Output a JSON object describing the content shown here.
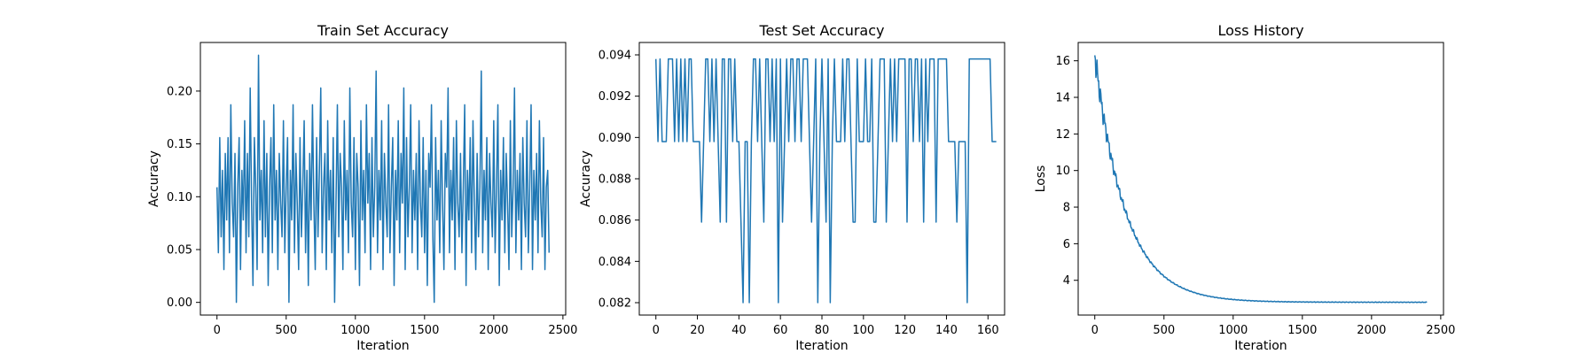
{
  "chart_data": [
    {
      "type": "line",
      "title": "Train Set Accuracy",
      "xlabel": "Iteration",
      "ylabel": "Accuracy",
      "xlim": [
        -120,
        2520
      ],
      "ylim": [
        -0.012,
        0.246
      ],
      "xticks": [
        0,
        500,
        1000,
        1500,
        2000,
        2500
      ],
      "yticks": [
        0.0,
        0.05,
        0.1,
        0.15,
        0.2
      ],
      "ytick_labels": [
        "0.00",
        "0.05",
        "0.10",
        "0.15",
        "0.20"
      ],
      "grid": false,
      "color": "#1f77b4",
      "series": [
        {
          "x_start": 0,
          "x_step": 10,
          "values": [
            0.109,
            0.047,
            0.156,
            0.062,
            0.125,
            0.031,
            0.141,
            0.078,
            0.156,
            0.047,
            0.187,
            0.094,
            0.062,
            0.141,
            0.0,
            0.109,
            0.156,
            0.031,
            0.125,
            0.078,
            0.172,
            0.047,
            0.141,
            0.062,
            0.203,
            0.094,
            0.016,
            0.156,
            0.109,
            0.031,
            0.234,
            0.078,
            0.125,
            0.047,
            0.172,
            0.062,
            0.141,
            0.016,
            0.109,
            0.156,
            0.047,
            0.187,
            0.078,
            0.125,
            0.031,
            0.141,
            0.094,
            0.062,
            0.172,
            0.047,
            0.109,
            0.156,
            0.0,
            0.125,
            0.078,
            0.187,
            0.047,
            0.141,
            0.094,
            0.031,
            0.156,
            0.062,
            0.109,
            0.172,
            0.047,
            0.125,
            0.016,
            0.141,
            0.078,
            0.187,
            0.094,
            0.031,
            0.156,
            0.062,
            0.125,
            0.203,
            0.047,
            0.109,
            0.141,
            0.031,
            0.172,
            0.078,
            0.125,
            0.047,
            0.156,
            0.0,
            0.094,
            0.187,
            0.062,
            0.141,
            0.109,
            0.031,
            0.172,
            0.078,
            0.125,
            0.047,
            0.203,
            0.094,
            0.062,
            0.156,
            0.031,
            0.141,
            0.109,
            0.016,
            0.172,
            0.078,
            0.125,
            0.047,
            0.187,
            0.094,
            0.141,
            0.031,
            0.156,
            0.062,
            0.109,
            0.219,
            0.047,
            0.125,
            0.078,
            0.172,
            0.031,
            0.141,
            0.094,
            0.062,
            0.187,
            0.047,
            0.109,
            0.156,
            0.016,
            0.125,
            0.078,
            0.172,
            0.047,
            0.141,
            0.094,
            0.203,
            0.031,
            0.156,
            0.062,
            0.109,
            0.187,
            0.047,
            0.125,
            0.078,
            0.141,
            0.031,
            0.172,
            0.094,
            0.062,
            0.156,
            0.047,
            0.125,
            0.016,
            0.141,
            0.109,
            0.187,
            0.062,
            0.0,
            0.156,
            0.078,
            0.125,
            0.047,
            0.172,
            0.094,
            0.031,
            0.141,
            0.109,
            0.203,
            0.047,
            0.125,
            0.078,
            0.156,
            0.031,
            0.172,
            0.094,
            0.062,
            0.141,
            0.047,
            0.109,
            0.187,
            0.016,
            0.125,
            0.078,
            0.156,
            0.047,
            0.172,
            0.094,
            0.031,
            0.141,
            0.062,
            0.109,
            0.219,
            0.047,
            0.125,
            0.078,
            0.156,
            0.031,
            0.141,
            0.094,
            0.062,
            0.172,
            0.047,
            0.109,
            0.187,
            0.016,
            0.125,
            0.078,
            0.156,
            0.047,
            0.141,
            0.094,
            0.031,
            0.172,
            0.062,
            0.109,
            0.203,
            0.047,
            0.125,
            0.078,
            0.141,
            0.031,
            0.156,
            0.094,
            0.062,
            0.172,
            0.047,
            0.109,
            0.187,
            0.031,
            0.125,
            0.078,
            0.141,
            0.047,
            0.172,
            0.094,
            0.062,
            0.156,
            0.031,
            0.109,
            0.125,
            0.047
          ]
        }
      ]
    },
    {
      "type": "line",
      "title": "Test Set Accuracy",
      "xlabel": "Iteration",
      "ylabel": "Accuracy",
      "xlim": [
        -8,
        168
      ],
      "ylim": [
        0.0814,
        0.0946
      ],
      "xticks": [
        0,
        20,
        40,
        60,
        80,
        100,
        120,
        140,
        160
      ],
      "yticks": [
        0.082,
        0.084,
        0.086,
        0.088,
        0.09,
        0.092,
        0.094
      ],
      "ytick_labels": [
        "0.082",
        "0.084",
        "0.086",
        "0.088",
        "0.090",
        "0.092",
        "0.094"
      ],
      "grid": false,
      "color": "#1f77b4",
      "series": [
        {
          "x_start": 0,
          "x_step": 1,
          "values": [
            0.0938,
            0.0898,
            0.0938,
            0.0898,
            0.0898,
            0.0898,
            0.0938,
            0.0938,
            0.0938,
            0.0898,
            0.0938,
            0.0898,
            0.0938,
            0.0898,
            0.0938,
            0.0898,
            0.0938,
            0.0938,
            0.0898,
            0.0898,
            0.0898,
            0.0898,
            0.0859,
            0.0898,
            0.0938,
            0.0938,
            0.0898,
            0.0938,
            0.0898,
            0.0938,
            0.0898,
            0.0859,
            0.0938,
            0.0938,
            0.0859,
            0.0938,
            0.0938,
            0.0898,
            0.0938,
            0.0898,
            0.0898,
            0.0859,
            0.082,
            0.0898,
            0.0898,
            0.082,
            0.0898,
            0.0938,
            0.0938,
            0.0898,
            0.0938,
            0.0898,
            0.0859,
            0.0938,
            0.0938,
            0.0898,
            0.0938,
            0.0898,
            0.0938,
            0.082,
            0.0938,
            0.0859,
            0.0898,
            0.0938,
            0.0898,
            0.0938,
            0.0938,
            0.0898,
            0.0938,
            0.0938,
            0.0898,
            0.0938,
            0.0938,
            0.0938,
            0.0898,
            0.0859,
            0.0898,
            0.0938,
            0.082,
            0.0898,
            0.0938,
            0.0898,
            0.0859,
            0.0938,
            0.082,
            0.0898,
            0.0938,
            0.0898,
            0.0898,
            0.0898,
            0.0938,
            0.0898,
            0.0938,
            0.0938,
            0.0898,
            0.0859,
            0.0859,
            0.0938,
            0.0898,
            0.0898,
            0.0898,
            0.0938,
            0.0898,
            0.0898,
            0.0938,
            0.0859,
            0.0859,
            0.0898,
            0.0938,
            0.0938,
            0.0938,
            0.0859,
            0.0898,
            0.0938,
            0.0898,
            0.0938,
            0.0898,
            0.0938,
            0.0938,
            0.0938,
            0.0938,
            0.0859,
            0.0938,
            0.0938,
            0.0898,
            0.0938,
            0.0938,
            0.0898,
            0.0938,
            0.0859,
            0.0938,
            0.0898,
            0.0938,
            0.0938,
            0.0938,
            0.0859,
            0.0938,
            0.0938,
            0.0938,
            0.0938,
            0.0938,
            0.0898,
            0.0898,
            0.0898,
            0.0898,
            0.0859,
            0.0898,
            0.0898,
            0.0898,
            0.0898,
            0.082,
            0.0938,
            0.0938,
            0.0938,
            0.0938,
            0.0938,
            0.0938,
            0.0938,
            0.0938,
            0.0938,
            0.0938,
            0.0938,
            0.0898,
            0.0898,
            0.0898
          ]
        }
      ]
    },
    {
      "type": "line",
      "title": "Loss History",
      "xlabel": "Iteration",
      "ylabel": "Loss",
      "xlim": [
        -120,
        2520
      ],
      "ylim": [
        2.1,
        17.0
      ],
      "xticks": [
        0,
        500,
        1000,
        1500,
        2000,
        2500
      ],
      "yticks": [
        4,
        6,
        8,
        10,
        12,
        14,
        16
      ],
      "ytick_labels": [
        "4",
        "6",
        "8",
        "10",
        "12",
        "14",
        "16"
      ],
      "grid": false,
      "color": "#1f77b4",
      "series": [
        {
          "decay": {
            "x_end": 2400,
            "start": 16.3,
            "asymptote": 2.8,
            "rate": 0.0045,
            "noise": 0.9
          }
        }
      ]
    }
  ]
}
